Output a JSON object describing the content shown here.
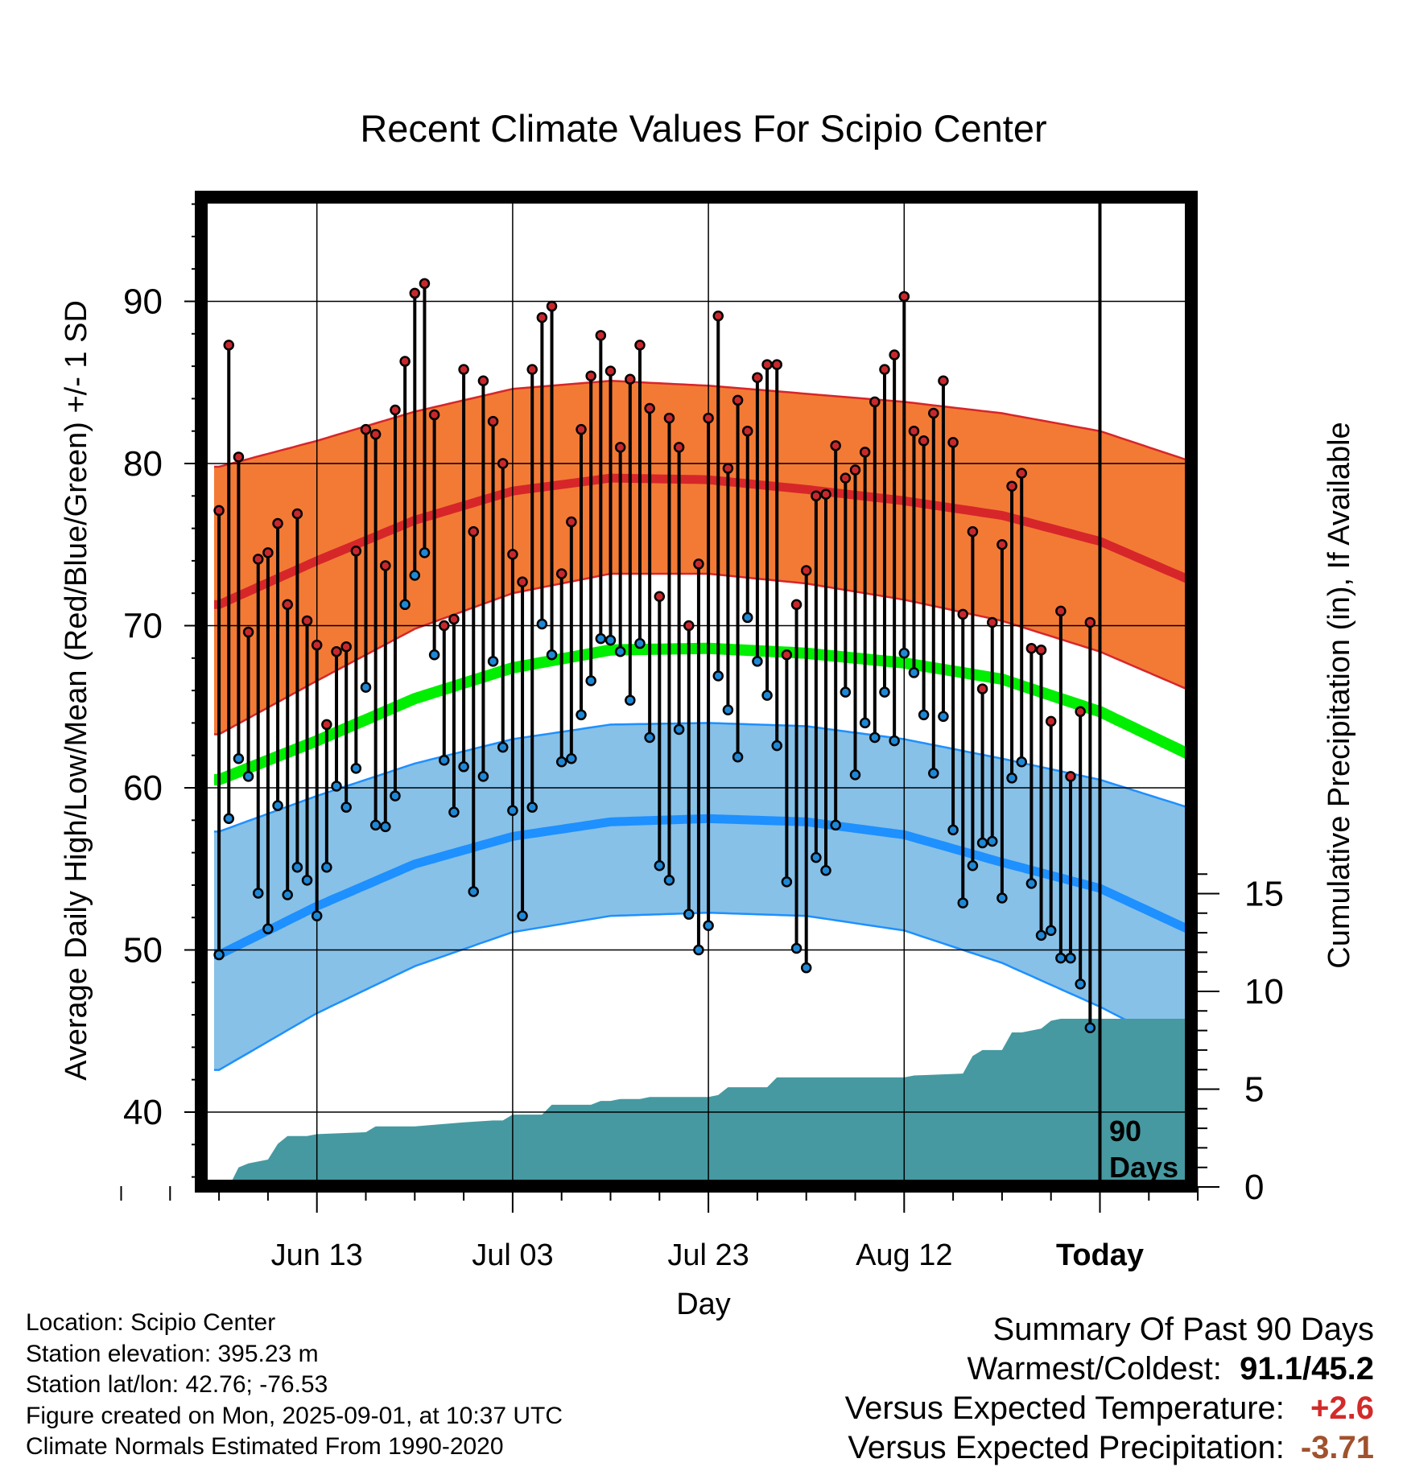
{
  "chart_data": {
    "type": "line",
    "title": "Recent Climate Values For Scipio Center",
    "xlabel": "Day",
    "ylabel": "Average Daily High/Low/Mean (Red/Blue/Green) +/- 1 SD",
    "y2label": "Cumulative Precipitation (in), If Available",
    "x_ticks": [
      "Jun 13",
      "Jul 03",
      "Jul 23",
      "Aug 12",
      "Today"
    ],
    "x_tick_days": [
      10,
      30,
      50,
      70,
      90
    ],
    "today_label_line1": "90",
    "today_label_line2": "Days",
    "x_range_days": [
      -10,
      101
    ],
    "ylim": [
      35,
      96
    ],
    "y_ticks": [
      40,
      50,
      60,
      70,
      80,
      90
    ],
    "y2lim": [
      0,
      40
    ],
    "y2_ticks": [
      0,
      5,
      10,
      15
    ],
    "grid": true,
    "normals": {
      "days": [
        0,
        10,
        20,
        30,
        40,
        50,
        60,
        70,
        80,
        90,
        100
      ],
      "high_mean": [
        71.3,
        74.0,
        76.5,
        78.3,
        79.1,
        79.0,
        78.4,
        77.7,
        76.8,
        75.2,
        72.6
      ],
      "high_sd_upper": [
        79.8,
        81.4,
        83.2,
        84.6,
        85.1,
        84.8,
        84.3,
        83.8,
        83.1,
        82.0,
        80.0
      ],
      "high_sd_lower": [
        63.3,
        66.6,
        69.8,
        72.0,
        73.2,
        73.2,
        72.6,
        71.6,
        70.3,
        68.4,
        65.8
      ],
      "mean": [
        60.5,
        62.9,
        65.5,
        67.4,
        68.5,
        68.6,
        68.3,
        67.7,
        66.7,
        64.7,
        61.8
      ],
      "low_mean": [
        49.7,
        52.7,
        55.3,
        57.0,
        57.9,
        58.1,
        57.9,
        57.1,
        55.4,
        53.8,
        51.0
      ],
      "low_sd_upper": [
        57.3,
        59.5,
        61.5,
        63.0,
        63.9,
        64.0,
        63.8,
        63.0,
        61.8,
        60.5,
        58.6
      ],
      "low_sd_lower": [
        42.6,
        46.1,
        49.0,
        51.1,
        52.1,
        52.3,
        52.1,
        51.2,
        49.2,
        46.5,
        43.4
      ],
      "colors": {
        "high_band": "#f37a35",
        "high_line": "#d6262a",
        "mean_line": "#00ee00",
        "low_band": "#87c1e8",
        "low_line": "#1e90ff"
      }
    },
    "series": [
      {
        "name": "High",
        "color": "#c8282d",
        "values": [
          77.1,
          87.3,
          80.4,
          69.6,
          74.1,
          74.5,
          76.3,
          71.3,
          76.9,
          70.3,
          68.8,
          63.9,
          68.4,
          68.7,
          74.6,
          82.1,
          81.8,
          73.7,
          83.3,
          86.3,
          90.5,
          91.1,
          83.0,
          70.0,
          70.4,
          85.8,
          75.8,
          85.1,
          82.6,
          80.0,
          74.4,
          72.7,
          85.8,
          89.0,
          89.7,
          73.2,
          76.4,
          82.1,
          85.4,
          87.9,
          85.7,
          81.0,
          85.2,
          87.3,
          83.4,
          71.8,
          82.8,
          81.0,
          70.0,
          73.8,
          82.8,
          89.1,
          79.7,
          83.9,
          82.0,
          85.3,
          86.1,
          86.1,
          68.2,
          71.3,
          73.4,
          78.0,
          78.1,
          81.1,
          79.1,
          79.6,
          80.7,
          83.8,
          85.8,
          86.7,
          90.3,
          82.0,
          81.4,
          83.1,
          85.1,
          81.3,
          70.7,
          75.8,
          66.1,
          70.2,
          75.0,
          78.6,
          79.4,
          68.6,
          68.5,
          64.1,
          70.9,
          60.7,
          64.7,
          70.2
        ]
      },
      {
        "name": "Low",
        "color": "#1e88d6",
        "values": [
          49.7,
          58.1,
          61.8,
          60.7,
          53.5,
          51.3,
          58.9,
          53.4,
          55.1,
          54.3,
          52.1,
          55.1,
          60.1,
          58.8,
          61.2,
          66.2,
          57.7,
          57.6,
          59.5,
          71.3,
          73.1,
          74.5,
          68.2,
          61.7,
          58.5,
          61.3,
          53.6,
          60.7,
          67.8,
          62.5,
          58.6,
          52.1,
          58.8,
          70.1,
          68.2,
          61.6,
          61.8,
          64.5,
          66.6,
          69.2,
          69.1,
          68.4,
          65.4,
          68.9,
          63.1,
          55.2,
          54.3,
          63.6,
          52.2,
          50.0,
          51.5,
          66.9,
          64.8,
          61.9,
          70.5,
          67.8,
          65.7,
          62.6,
          54.2,
          50.1,
          48.9,
          55.7,
          54.9,
          57.7,
          65.9,
          60.8,
          64.0,
          63.1,
          65.9,
          62.9,
          68.3,
          67.1,
          64.5,
          60.9,
          64.4,
          57.4,
          52.9,
          55.2,
          56.6,
          56.7,
          53.2,
          60.6,
          61.6,
          54.1,
          50.9,
          51.2,
          49.5,
          49.5,
          47.9,
          45.2
        ]
      }
    ],
    "precipitation": {
      "color": "#4699a1",
      "days": [
        0,
        1,
        2,
        3,
        4,
        5,
        6,
        7,
        8,
        9,
        10,
        15,
        16,
        20,
        25,
        28,
        29,
        30,
        31,
        33,
        34,
        35,
        36,
        38,
        39,
        40,
        41,
        43,
        44,
        45,
        50,
        51,
        52,
        53,
        56,
        57,
        58,
        60,
        65,
        68,
        70,
        71,
        76,
        77,
        78,
        80,
        81,
        82,
        84,
        85,
        86,
        88,
        90,
        91,
        100
      ],
      "values": [
        0.0,
        0.0,
        1.0,
        1.2,
        1.3,
        1.4,
        2.2,
        2.6,
        2.6,
        2.6,
        2.7,
        2.8,
        3.1,
        3.1,
        3.3,
        3.4,
        3.4,
        3.7,
        3.7,
        3.7,
        4.2,
        4.2,
        4.2,
        4.2,
        4.4,
        4.4,
        4.5,
        4.5,
        4.6,
        4.6,
        4.6,
        4.7,
        5.1,
        5.1,
        5.1,
        5.6,
        5.6,
        5.6,
        5.6,
        5.6,
        5.6,
        5.7,
        5.8,
        6.7,
        7.0,
        7.0,
        7.9,
        7.9,
        8.1,
        8.5,
        8.6,
        8.6,
        8.6,
        8.6,
        8.6
      ]
    }
  },
  "footer": {
    "location": "Location: Scipio Center",
    "elevation": "Station elevation: 395.23 m",
    "latlon": "Station lat/lon: 42.76; -76.53",
    "created": "Figure created on Mon, 2025-09-01, at 10:37 UTC",
    "normals_period": "Climate Normals Estimated From 1990-2020"
  },
  "summary": {
    "heading": "Summary Of Past 90 Days",
    "warm_cold_label": "Warmest/Coldest:",
    "warm_cold_value": "91.1/45.2",
    "temp_label": "Versus Expected Temperature:",
    "temp_value": "+2.6",
    "temp_color": "#d42a2a",
    "precip_label": "Versus Expected Precipitation:",
    "precip_value": "-3.71",
    "precip_color": "#a0522d"
  }
}
